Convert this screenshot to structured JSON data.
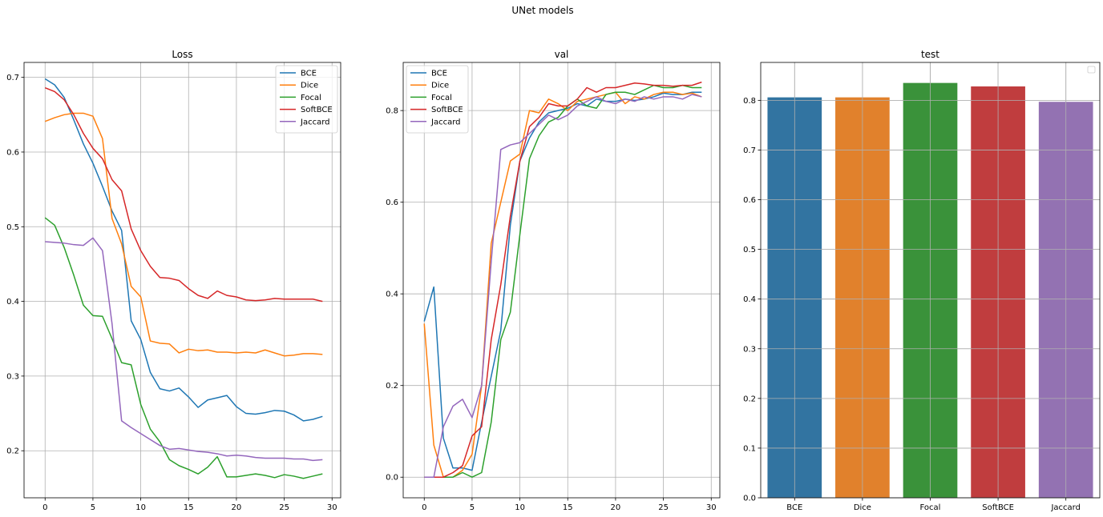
{
  "suptitle": "UNet models",
  "colors": {
    "BCE": "#1f77b4",
    "Dice": "#ff7f0e",
    "Focal": "#2ca02c",
    "SoftBCE": "#d62728",
    "Jaccard": "#9467bd"
  },
  "bar_colors": [
    "#3274a1",
    "#e1812c",
    "#3a923a",
    "#c03d3e",
    "#9372b2"
  ],
  "chart_data": [
    {
      "type": "line",
      "title": "Loss",
      "xlabel": "",
      "ylabel": "",
      "xlim": [
        -2.2,
        30.9
      ],
      "ylim": [
        0.137,
        0.72
      ],
      "xticks": [
        0,
        5,
        10,
        15,
        20,
        25,
        30
      ],
      "yticks": [
        0.2,
        0.3,
        0.4,
        0.5,
        0.6,
        0.7
      ],
      "grid": true,
      "legend": "upper right",
      "x": [
        0,
        1,
        2,
        3,
        4,
        5,
        6,
        7,
        8,
        9,
        10,
        11,
        12,
        13,
        14,
        15,
        16,
        17,
        18,
        19,
        20,
        21,
        22,
        23,
        24,
        25,
        26,
        27,
        28,
        29
      ],
      "series": [
        {
          "name": "BCE",
          "values": [
            0.698,
            0.69,
            0.673,
            0.643,
            0.611,
            0.585,
            0.554,
            0.521,
            0.495,
            0.374,
            0.349,
            0.305,
            0.283,
            0.28,
            0.284,
            0.272,
            0.258,
            0.268,
            0.271,
            0.274,
            0.259,
            0.25,
            0.249,
            0.251,
            0.254,
            0.253,
            0.248,
            0.24,
            0.242,
            0.246
          ]
        },
        {
          "name": "Dice",
          "values": [
            0.641,
            0.646,
            0.65,
            0.652,
            0.652,
            0.648,
            0.618,
            0.511,
            0.477,
            0.42,
            0.406,
            0.347,
            0.344,
            0.343,
            0.331,
            0.336,
            0.334,
            0.335,
            0.332,
            0.332,
            0.331,
            0.332,
            0.331,
            0.335,
            0.331,
            0.327,
            0.328,
            0.33,
            0.33,
            0.329
          ]
        },
        {
          "name": "Focal",
          "values": [
            0.512,
            0.502,
            0.472,
            0.435,
            0.395,
            0.381,
            0.38,
            0.35,
            0.318,
            0.315,
            0.262,
            0.229,
            0.212,
            0.188,
            0.18,
            0.175,
            0.169,
            0.178,
            0.192,
            0.165,
            0.165,
            0.167,
            0.169,
            0.167,
            0.164,
            0.168,
            0.166,
            0.163,
            0.166,
            0.169
          ]
        },
        {
          "name": "SoftBCE",
          "values": [
            0.686,
            0.681,
            0.67,
            0.65,
            0.625,
            0.605,
            0.591,
            0.563,
            0.548,
            0.497,
            0.468,
            0.447,
            0.432,
            0.431,
            0.428,
            0.417,
            0.408,
            0.404,
            0.414,
            0.408,
            0.406,
            0.402,
            0.401,
            0.402,
            0.404,
            0.403,
            0.403,
            0.403,
            0.403,
            0.4
          ]
        },
        {
          "name": "Jaccard",
          "values": [
            0.48,
            0.479,
            0.478,
            0.476,
            0.475,
            0.485,
            0.468,
            0.37,
            0.24,
            0.231,
            0.223,
            0.215,
            0.207,
            0.202,
            0.203,
            0.201,
            0.199,
            0.198,
            0.196,
            0.193,
            0.194,
            0.193,
            0.191,
            0.19,
            0.19,
            0.19,
            0.189,
            0.189,
            0.187,
            0.188
          ]
        }
      ]
    },
    {
      "type": "line",
      "title": "val",
      "xlabel": "",
      "ylabel": "",
      "xlim": [
        -2.2,
        30.9
      ],
      "ylim": [
        -0.045,
        0.905
      ],
      "xticks": [
        0,
        5,
        10,
        15,
        20,
        25,
        30
      ],
      "yticks": [
        0.0,
        0.2,
        0.4,
        0.6,
        0.8
      ],
      "grid": true,
      "legend": "upper left",
      "x": [
        0,
        1,
        2,
        3,
        4,
        5,
        6,
        7,
        8,
        9,
        10,
        11,
        12,
        13,
        14,
        15,
        16,
        17,
        18,
        19,
        20,
        21,
        22,
        23,
        24,
        25,
        26,
        27,
        28,
        29
      ],
      "series": [
        {
          "name": "BCE",
          "values": [
            0.34,
            0.415,
            0.085,
            0.02,
            0.02,
            0.015,
            0.12,
            0.22,
            0.32,
            0.55,
            0.69,
            0.74,
            0.775,
            0.795,
            0.8,
            0.805,
            0.815,
            0.81,
            0.825,
            0.82,
            0.82,
            0.825,
            0.822,
            0.825,
            0.83,
            0.838,
            0.835,
            0.835,
            0.84,
            0.84
          ]
        },
        {
          "name": "Dice",
          "values": [
            0.335,
            0.07,
            0.0,
            0.0,
            0.015,
            0.05,
            0.2,
            0.51,
            0.6,
            0.69,
            0.705,
            0.8,
            0.795,
            0.825,
            0.815,
            0.8,
            0.82,
            0.825,
            0.83,
            0.835,
            0.84,
            0.815,
            0.83,
            0.825,
            0.835,
            0.84,
            0.84,
            0.835,
            0.838,
            0.83
          ]
        },
        {
          "name": "Focal",
          "values": [
            0.0,
            0.0,
            0.0,
            0.0,
            0.01,
            0.0,
            0.01,
            0.12,
            0.3,
            0.36,
            0.53,
            0.695,
            0.745,
            0.775,
            0.785,
            0.81,
            0.825,
            0.81,
            0.805,
            0.835,
            0.84,
            0.84,
            0.835,
            0.845,
            0.855,
            0.85,
            0.85,
            0.855,
            0.85,
            0.85
          ]
        },
        {
          "name": "SoftBCE",
          "values": [
            0.0,
            0.0,
            0.0,
            0.01,
            0.025,
            0.09,
            0.11,
            0.3,
            0.42,
            0.57,
            0.69,
            0.765,
            0.785,
            0.815,
            0.81,
            0.81,
            0.825,
            0.85,
            0.84,
            0.85,
            0.85,
            0.855,
            0.86,
            0.858,
            0.855,
            0.855,
            0.853,
            0.855,
            0.855,
            0.862
          ]
        },
        {
          "name": "Jaccard",
          "values": [
            0.0,
            0.0,
            0.11,
            0.155,
            0.17,
            0.13,
            0.2,
            0.47,
            0.715,
            0.725,
            0.73,
            0.75,
            0.77,
            0.79,
            0.78,
            0.79,
            0.81,
            0.82,
            0.83,
            0.82,
            0.815,
            0.825,
            0.82,
            0.83,
            0.825,
            0.83,
            0.83,
            0.825,
            0.835,
            0.83
          ]
        }
      ]
    },
    {
      "type": "bar",
      "title": "test",
      "xlabel": "",
      "ylabel": "",
      "ylim": [
        0,
        0.8763
      ],
      "yticks": [
        0.0,
        0.1,
        0.2,
        0.3,
        0.4,
        0.5,
        0.6,
        0.7,
        0.8
      ],
      "grid": true,
      "legend": "upper right (empty)",
      "categories": [
        "BCE",
        "Dice",
        "Focal",
        "SoftBCE",
        "Jaccard"
      ],
      "values": [
        0.806,
        0.806,
        0.835,
        0.828,
        0.797
      ]
    }
  ]
}
